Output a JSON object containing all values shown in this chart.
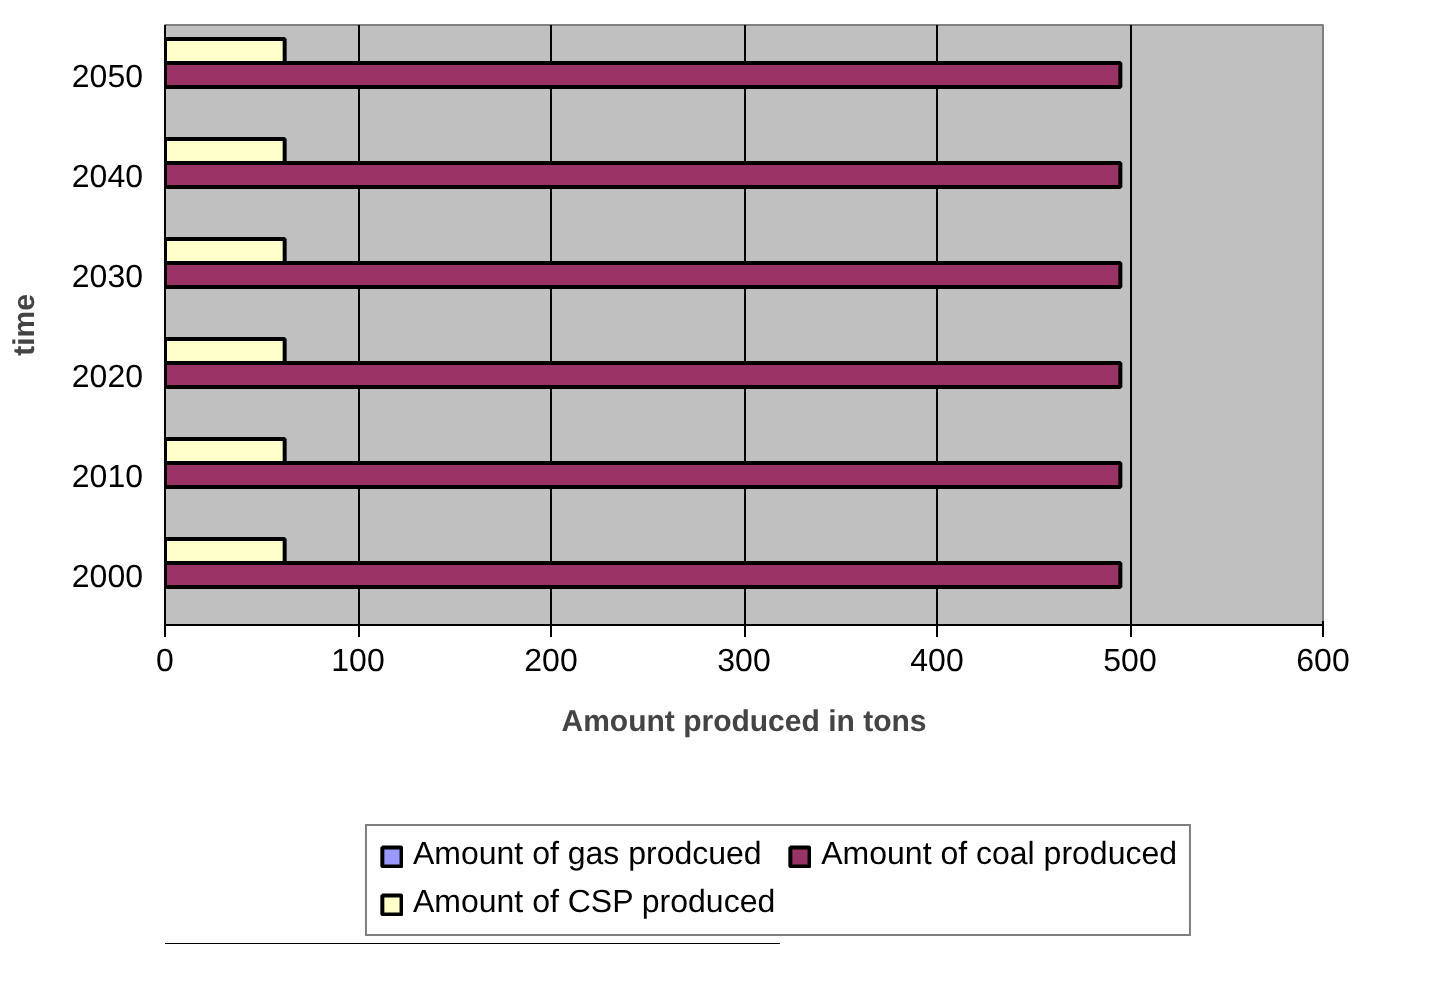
{
  "chart_data": {
    "type": "bar",
    "orientation": "horizontal",
    "xlabel": "Amount produced in tons",
    "ylabel": "time",
    "categories": [
      "2050",
      "2040",
      "2030",
      "2020",
      "2010",
      "2000"
    ],
    "series": [
      {
        "name": "Amount of gas prodcued",
        "color": "#9999ff",
        "values": [
          0,
          0,
          0,
          0,
          0,
          0
        ]
      },
      {
        "name": "Amount of coal produced",
        "color": "#993366",
        "values": [
          495,
          495,
          495,
          495,
          495,
          495
        ]
      },
      {
        "name": "Amount of CSP produced",
        "color": "#ffffcc",
        "values": [
          62,
          62,
          62,
          62,
          62,
          62
        ]
      }
    ],
    "xlim": [
      0,
      600
    ],
    "xticks": [
      0,
      100,
      200,
      300,
      400,
      500,
      600
    ],
    "grid": "x",
    "legend": "bottom"
  }
}
